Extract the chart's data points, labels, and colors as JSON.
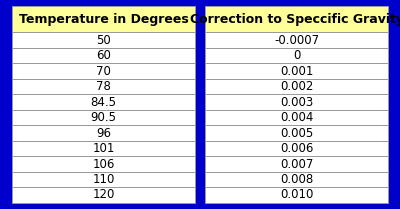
{
  "col1_header": "Temperature in Degrees",
  "col2_header": "Correction to Speccific Gravity",
  "temperatures": [
    "50",
    "60",
    "70",
    "78",
    "84.5",
    "90.5",
    "96",
    "101",
    "106",
    "110",
    "120"
  ],
  "corrections": [
    "-0.0007",
    "0",
    "0.001",
    "0.002",
    "0.003",
    "0.004",
    "0.005",
    "0.006",
    "0.007",
    "0.008",
    "0.010"
  ],
  "bg_color": "#0000cc",
  "header_bg": "#ffff99",
  "row_bg": "#ffffff",
  "border_color": "#999999",
  "text_color": "#000000"
}
